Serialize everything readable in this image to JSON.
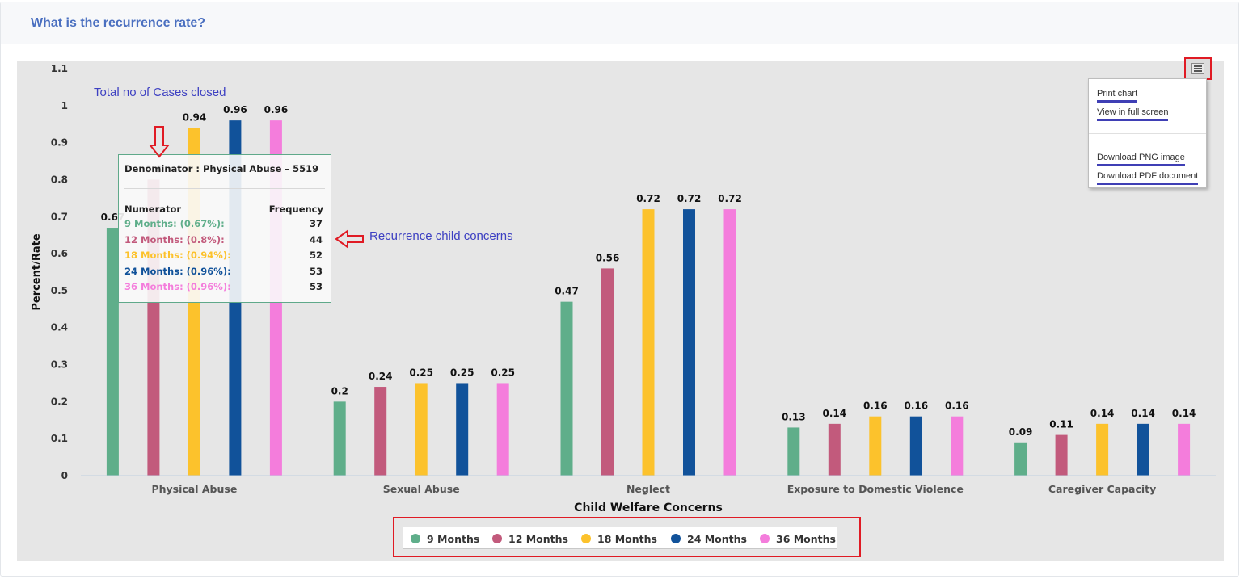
{
  "header": {
    "title": "What is the recurrence rate?"
  },
  "annotations": {
    "total_cases": "Total no of Cases closed",
    "recurrence": "Recurrence child concerns"
  },
  "export_menu": {
    "items": [
      "Print chart",
      "View in full screen",
      "Download PNG image",
      "Download PDF document"
    ]
  },
  "tooltip": {
    "header": "Denominator : Physical Abuse – 5519",
    "numerator_label": "Numerator",
    "frequency_label": "Frequency",
    "rows": [
      {
        "label": "9 Months: (0.67%):",
        "value": "37",
        "color": "#5fae8a"
      },
      {
        "label": "12 Months: (0.8%):",
        "value": "44",
        "color": "#c25a7c"
      },
      {
        "label": "18 Months: (0.94%):",
        "value": "52",
        "color": "#fcc22c"
      },
      {
        "label": "24 Months: (0.96%):",
        "value": "53",
        "color": "#11529a"
      },
      {
        "label": "36 Months: (0.96%):",
        "value": "53",
        "color": "#f47ddc"
      }
    ]
  },
  "chart_data": {
    "type": "bar",
    "title": "",
    "xlabel": "Child Welfare Concerns",
    "ylabel": "Percent/Rate",
    "ylim": [
      0,
      1.1
    ],
    "yticks": [
      "0",
      "0.1",
      "0.2",
      "0.3",
      "0.4",
      "0.5",
      "0.6",
      "0.7",
      "0.8",
      "0.9",
      "1",
      "1.1"
    ],
    "categories": [
      "Physical Abuse",
      "Sexual Abuse",
      "Neglect",
      "Exposure to Domestic Violence",
      "Caregiver Capacity"
    ],
    "series": [
      {
        "name": "9 Months",
        "color": "#5fae8a",
        "values": [
          0.67,
          0.2,
          0.47,
          0.13,
          0.09
        ],
        "labels": [
          "0.67",
          "0.2",
          "0.47",
          "0.13",
          "0.09"
        ]
      },
      {
        "name": "12 Months",
        "color": "#c25a7c",
        "values": [
          0.8,
          0.24,
          0.56,
          0.14,
          0.11
        ],
        "labels": [
          "0.8",
          "0.24",
          "0.56",
          "0.14",
          "0.11"
        ]
      },
      {
        "name": "18 Months",
        "color": "#fcc22c",
        "values": [
          0.94,
          0.25,
          0.72,
          0.16,
          0.14
        ],
        "labels": [
          "0.94",
          "0.25",
          "0.72",
          "0.16",
          "0.14"
        ]
      },
      {
        "name": "24 Months",
        "color": "#11529a",
        "values": [
          0.96,
          0.25,
          0.72,
          0.16,
          0.14
        ],
        "labels": [
          "0.96",
          "0.25",
          "0.72",
          "0.16",
          "0.14"
        ]
      },
      {
        "name": "36 Months",
        "color": "#f47ddc",
        "values": [
          0.96,
          0.25,
          0.72,
          0.16,
          0.14
        ],
        "labels": [
          "0.96",
          "0.25",
          "0.72",
          "0.16",
          "0.14"
        ]
      }
    ],
    "grid": false,
    "legend": "bottom-center"
  }
}
